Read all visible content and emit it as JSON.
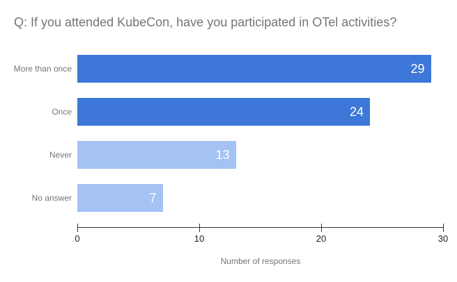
{
  "title": "Q: If you attended KubeCon, have you participated in OTel activities?",
  "chart_data": {
    "type": "bar",
    "orientation": "horizontal",
    "title": "Q: If you attended KubeCon, have you participated in OTel activities?",
    "categories": [
      "More than once",
      "Once",
      "Never",
      "No answer"
    ],
    "values": [
      29,
      24,
      13,
      7
    ],
    "bar_colors": [
      "#3d78d8",
      "#3d78d8",
      "#a4c2f4",
      "#a4c2f4"
    ],
    "value_label_position": "inside-end",
    "xlabel": "Number of responses",
    "ylabel": "",
    "xlim": [
      0,
      30
    ],
    "xticks": [
      0,
      10,
      20,
      30
    ],
    "grid": false,
    "legend": "none"
  },
  "colors": {
    "background": "#ffffff",
    "bar_primary": "#3d78d8",
    "bar_secondary": "#a4c2f4",
    "title_text": "#757575",
    "label_text": "#757575",
    "tick_text": "#212121",
    "axis_line": "#333333",
    "value_text": "#ffffff"
  }
}
